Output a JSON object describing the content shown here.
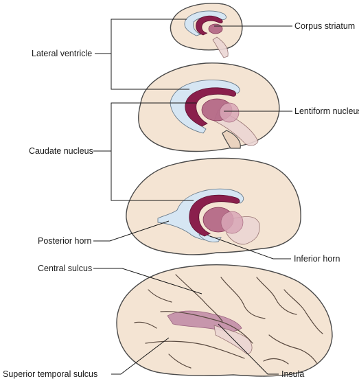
{
  "labels": {
    "corpus_striatum": "Corpus striatum",
    "lateral_ventricle": "Lateral ventricle",
    "lentiform_nucleus": "Lentiform nucleus",
    "caudate_nucleus": "Caudate nucleus",
    "posterior_horn": "Posterior horn",
    "inferior_horn": "Inferior horn",
    "central_sulcus": "Central sulcus",
    "superior_temporal_sulcus": "Superior temporal sulcus",
    "insula": "Insula"
  },
  "colors": {
    "brain_surface": "#f4e4d3",
    "ventricle": "#d6e6f3",
    "caudate": "#8a1f4c",
    "lentiform": "#b56a88",
    "insula": "#c796ac",
    "outline": "#4a4a4a"
  }
}
